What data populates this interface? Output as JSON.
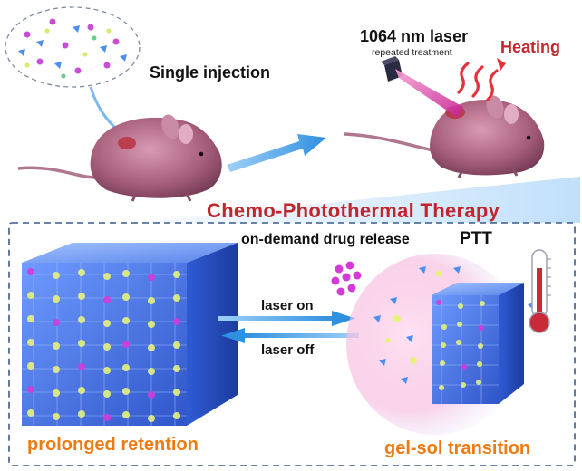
{
  "labels": {
    "single_injection": "Single injection",
    "laser_wavelength": "1064 nm laser",
    "laser_treatment": "repeated treatment",
    "heating": "Heating",
    "therapy_title": "Chemo-Photothermal Therapy",
    "drug_release": "on-demand drug release",
    "ptt": "PTT",
    "laser_on": "laser on",
    "laser_off": "laser off",
    "prolonged_retention": "prolonged retention",
    "gel_sol_transition": "gel-sol transition"
  },
  "colors": {
    "title_red": "#c0262c",
    "label_orange": "#f07a12",
    "arrow_blue": "#2f8fe0",
    "cube_blue": "#3f6fe0",
    "node_yellow": "#e6f27a",
    "drug_magenta": "#d43ad8",
    "mouse_pink": "#a8607c",
    "laser_beam": "#e24db0",
    "box_dash": "#3c5a8a"
  }
}
